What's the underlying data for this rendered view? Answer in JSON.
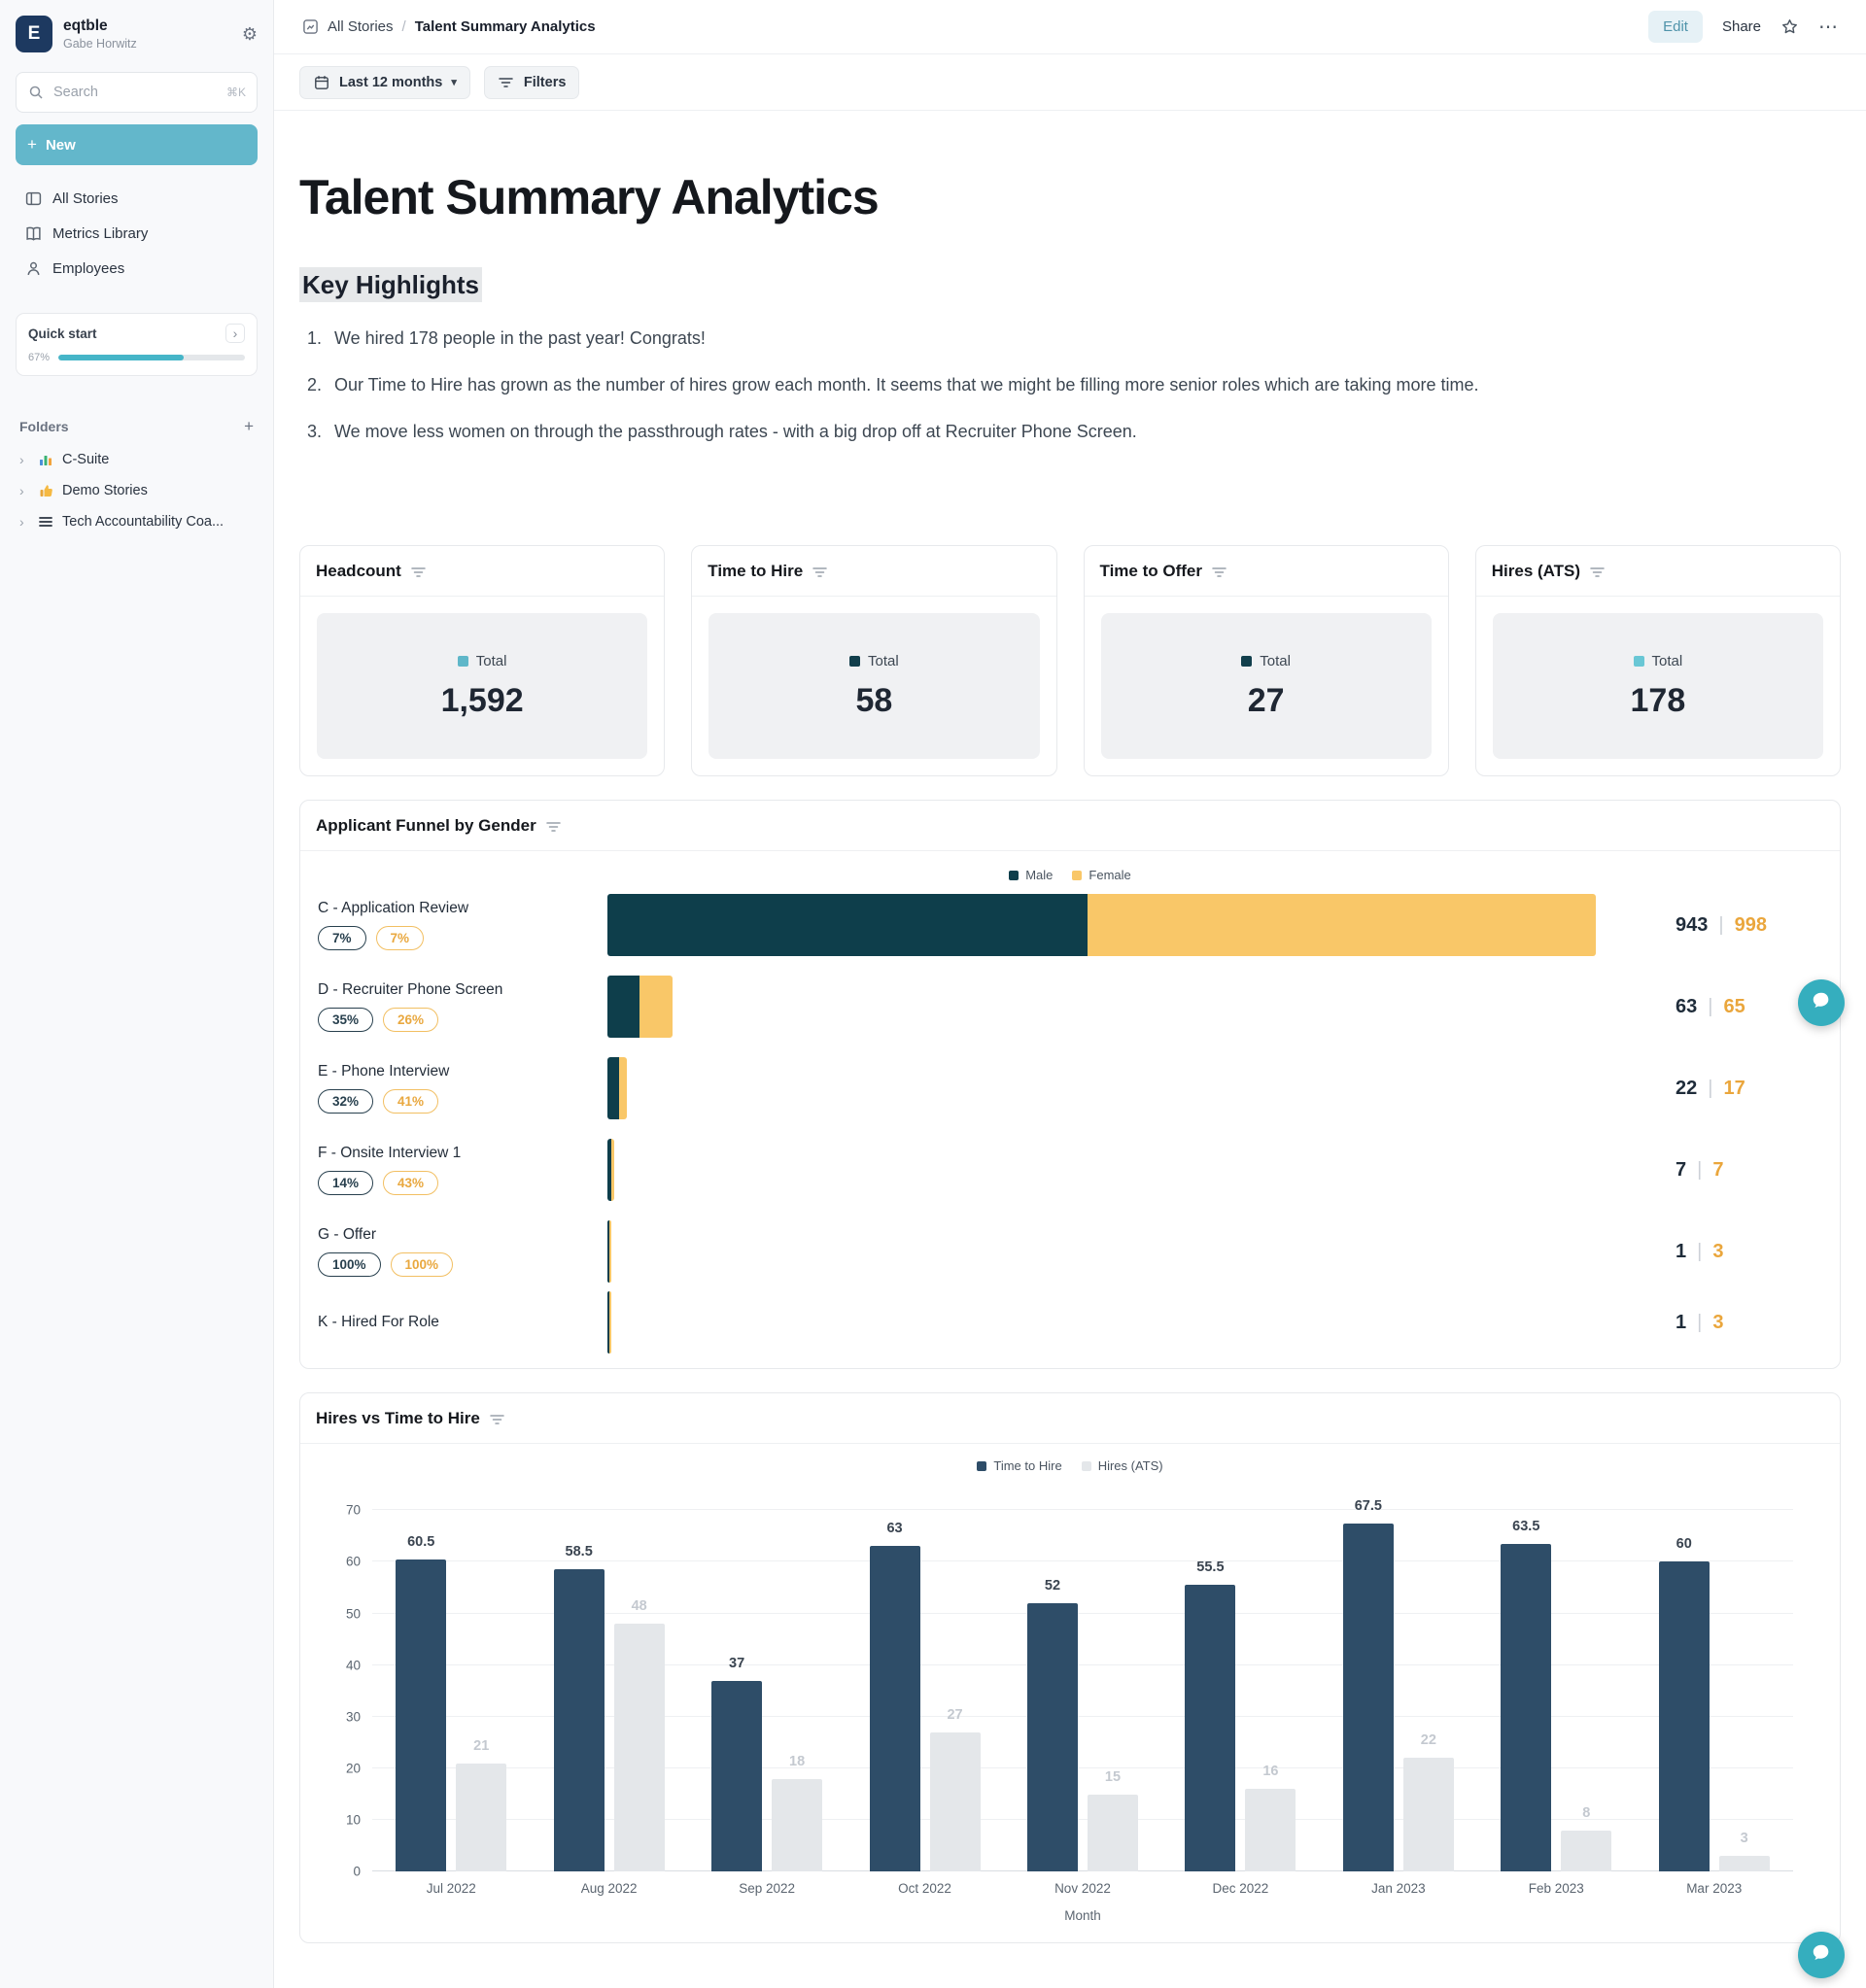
{
  "sidebar": {
    "workspace": {
      "initial": "E",
      "name": "eqtble",
      "user": "Gabe Horwitz"
    },
    "search": {
      "label": "Search",
      "shortcut": "⌘K"
    },
    "new_button": "New",
    "nav": [
      {
        "label": "All Stories",
        "icon": "stories-icon"
      },
      {
        "label": "Metrics Library",
        "icon": "library-icon"
      },
      {
        "label": "Employees",
        "icon": "employees-icon"
      }
    ],
    "quick_start": {
      "label": "Quick start",
      "percent": "67%",
      "progress": 67
    },
    "folders": {
      "label": "Folders",
      "items": [
        {
          "label": "C-Suite",
          "icon": "bar-chart-icon"
        },
        {
          "label": "Demo Stories",
          "icon": "thumbs-up-icon"
        },
        {
          "label": "Tech Accountability Coa...",
          "icon": "lines-icon"
        }
      ]
    }
  },
  "header": {
    "breadcrumb_root": "All Stories",
    "breadcrumb_sep": "/",
    "breadcrumb_current": "Talent Summary Analytics",
    "edit": "Edit",
    "share": "Share"
  },
  "toolbar": {
    "date_range": "Last 12 months",
    "filters": "Filters"
  },
  "page": {
    "title": "Talent Summary Analytics",
    "highlights_title": "Key Highlights",
    "highlights": [
      "We hired 178 people in the past year! Congrats!",
      "Our Time to Hire has grown as the number of hires grow each month. It seems that we might be filling more senior roles which are taking more time.",
      "We move less women on through the passthrough rates - with a big drop off at Recruiter Phone Screen."
    ]
  },
  "kpis": [
    {
      "title": "Headcount",
      "legend": "Total",
      "value": "1,592",
      "color": "#5fb7c9"
    },
    {
      "title": "Time to Hire",
      "legend": "Total",
      "value": "58",
      "color": "#123f4c"
    },
    {
      "title": "Time to Offer",
      "legend": "Total",
      "value": "27",
      "color": "#123f4c"
    },
    {
      "title": "Hires (ATS)",
      "legend": "Total",
      "value": "178",
      "color": "#69c7d5"
    }
  ],
  "chart_data": [
    {
      "type": "bar",
      "orientation": "horizontal",
      "title": "Applicant Funnel by Gender",
      "legend": [
        "Male",
        "Female"
      ],
      "legend_position": "top-center",
      "colors": {
        "male": "#0e3e4b",
        "female": "#f9c768"
      },
      "max_total": 1941,
      "stages": [
        {
          "label": "C - Application Review",
          "male": 943,
          "female": 998,
          "male_pct": "7%",
          "female_pct": "7%"
        },
        {
          "label": "D - Recruiter Phone Screen",
          "male": 63,
          "female": 65,
          "male_pct": "35%",
          "female_pct": "26%"
        },
        {
          "label": "E - Phone Interview",
          "male": 22,
          "female": 17,
          "male_pct": "32%",
          "female_pct": "41%"
        },
        {
          "label": "F - Onsite Interview 1",
          "male": 7,
          "female": 7,
          "male_pct": "14%",
          "female_pct": "43%"
        },
        {
          "label": "G - Offer",
          "male": 1,
          "female": 3,
          "male_pct": "100%",
          "female_pct": "100%"
        },
        {
          "label": "K - Hired For Role",
          "male": 1,
          "female": 3
        }
      ]
    },
    {
      "type": "bar",
      "title": "Hires vs Time to Hire",
      "legend_position": "top-center",
      "grid": true,
      "categories": [
        "Jul 2022",
        "Aug 2022",
        "Sep 2022",
        "Oct 2022",
        "Nov 2022",
        "Dec 2022",
        "Jan 2023",
        "Feb 2023",
        "Mar 2023"
      ],
      "series": [
        {
          "name": "Time to Hire",
          "color": "#2e4d68",
          "values": [
            60.5,
            58.5,
            37,
            63,
            52,
            55.5,
            67.5,
            63.5,
            60
          ]
        },
        {
          "name": "Hires (ATS)",
          "color": "#e4e7ea",
          "values": [
            21,
            48,
            18,
            27,
            15,
            16,
            22,
            8,
            3
          ]
        }
      ],
      "xlabel": "Month",
      "ylabel": "",
      "ylim": [
        0,
        70
      ],
      "yticks": [
        0,
        10,
        20,
        30,
        40,
        50,
        60,
        70
      ]
    }
  ]
}
